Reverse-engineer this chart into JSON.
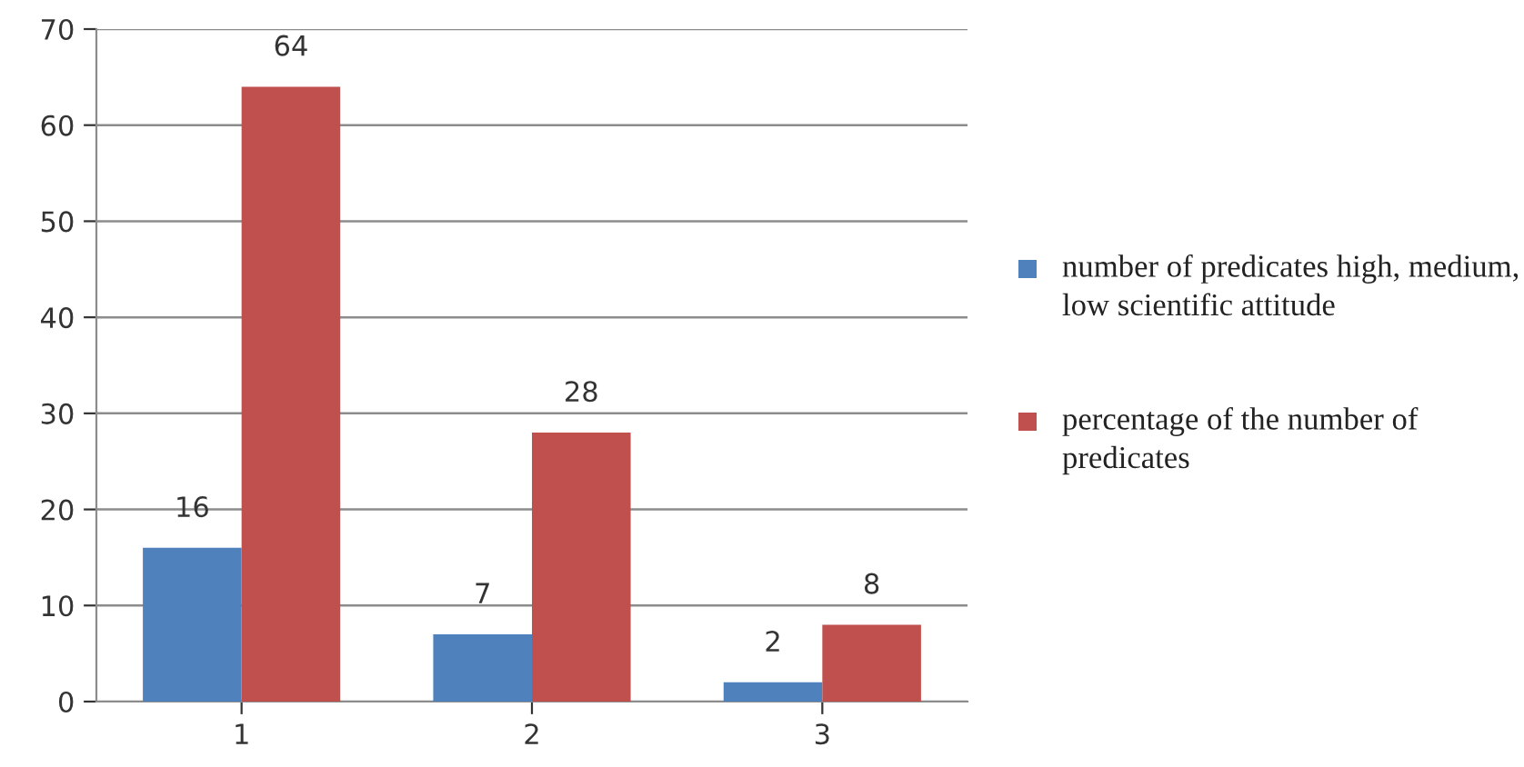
{
  "chart_data": {
    "type": "bar",
    "categories": [
      "1",
      "2",
      "3"
    ],
    "series": [
      {
        "name": "number of predicates high, medium, low scientific attitude",
        "color": "#4f81bd",
        "values": [
          16,
          7,
          2
        ]
      },
      {
        "name": "percentage of the number of predicates",
        "color": "#c0504d",
        "values": [
          64,
          28,
          8
        ]
      }
    ],
    "ylim": [
      0,
      70
    ],
    "yticks": [
      0,
      10,
      20,
      30,
      40,
      50,
      60,
      70
    ],
    "grid": "y",
    "legend": "right",
    "data_labels": true
  }
}
